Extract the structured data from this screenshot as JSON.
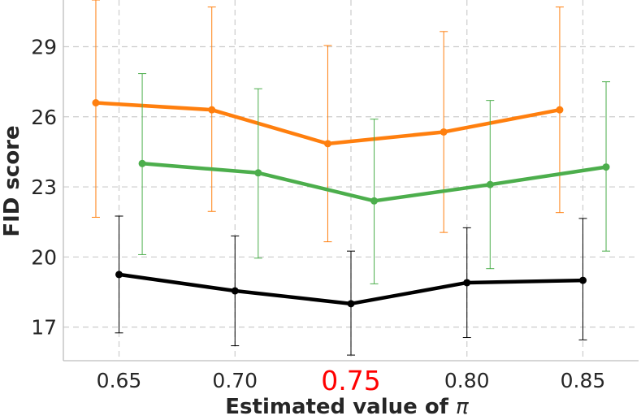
{
  "chart_data": {
    "type": "line",
    "xlabel": "Estimated value of ",
    "xlabel_symbol": "π",
    "ylabel": "FID score",
    "xlim": [
      0.626,
      0.874
    ],
    "ylim": [
      15.56,
      31.0
    ],
    "x_ticks": [
      {
        "value": 0.65,
        "label": "0.65",
        "highlight": false
      },
      {
        "value": 0.7,
        "label": "0.70",
        "highlight": false
      },
      {
        "value": 0.75,
        "label": "0.75",
        "highlight": true
      },
      {
        "value": 0.8,
        "label": "0.80",
        "highlight": false
      },
      {
        "value": 0.85,
        "label": "0.85",
        "highlight": false
      }
    ],
    "y_ticks": [
      {
        "value": 17,
        "label": "17"
      },
      {
        "value": 20,
        "label": "20"
      },
      {
        "value": 23,
        "label": "23"
      },
      {
        "value": 26,
        "label": "26"
      },
      {
        "value": 29,
        "label": "29"
      }
    ],
    "grid": true,
    "highlight_color": "#ff0000",
    "series": [
      {
        "name": "orange",
        "color": "#ff7f0e",
        "x": [
          0.64,
          0.69,
          0.74,
          0.79,
          0.84
        ],
        "y": [
          26.6,
          26.3,
          24.85,
          25.35,
          26.3
        ],
        "err_low": [
          21.7,
          21.95,
          20.65,
          21.05,
          21.9
        ],
        "err_high": [
          31.0,
          30.7,
          29.05,
          29.65,
          30.7
        ]
      },
      {
        "name": "green",
        "color": "#4cae4c",
        "x": [
          0.66,
          0.71,
          0.76,
          0.81,
          0.86
        ],
        "y": [
          24.0,
          23.6,
          22.4,
          23.1,
          23.85
        ],
        "err_low": [
          20.1,
          19.95,
          18.85,
          19.5,
          20.25
        ],
        "err_high": [
          27.85,
          27.2,
          25.9,
          26.7,
          27.5
        ]
      },
      {
        "name": "black",
        "color": "#000000",
        "x": [
          0.65,
          0.7,
          0.75,
          0.8,
          0.85
        ],
        "y": [
          19.25,
          18.55,
          18.0,
          18.9,
          19.0
        ],
        "err_low": [
          16.75,
          16.2,
          15.8,
          16.55,
          16.45
        ],
        "err_high": [
          21.75,
          20.9,
          20.25,
          21.25,
          21.65
        ]
      }
    ]
  }
}
